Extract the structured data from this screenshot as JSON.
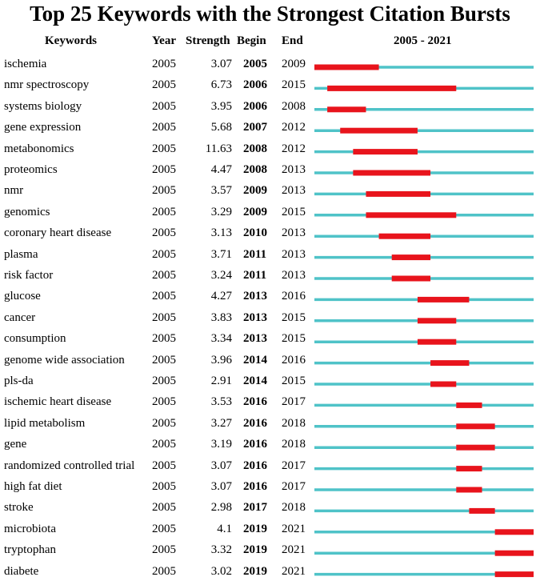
{
  "chart_data": {
    "type": "table",
    "title": "Top 25 Keywords with the Strongest Citation Bursts",
    "columns": [
      "Keywords",
      "Year",
      "Strength",
      "Begin",
      "End",
      "2005 - 2021"
    ],
    "range_start": 2005,
    "range_end": 2021,
    "colors": {
      "baseline": "#4fc3c8",
      "burst": "#e8141c"
    },
    "rows": [
      {
        "keyword": "ischemia",
        "year": "2005",
        "strength": "3.07",
        "begin": "2005",
        "end": "2009"
      },
      {
        "keyword": "nmr spectroscopy",
        "year": "2005",
        "strength": "6.73",
        "begin": "2006",
        "end": "2015"
      },
      {
        "keyword": "systems biology",
        "year": "2005",
        "strength": "3.95",
        "begin": "2006",
        "end": "2008"
      },
      {
        "keyword": "gene expression",
        "year": "2005",
        "strength": "5.68",
        "begin": "2007",
        "end": "2012"
      },
      {
        "keyword": "metabonomics",
        "year": "2005",
        "strength": "11.63",
        "begin": "2008",
        "end": "2012"
      },
      {
        "keyword": "proteomics",
        "year": "2005",
        "strength": "4.47",
        "begin": "2008",
        "end": "2013"
      },
      {
        "keyword": "nmr",
        "year": "2005",
        "strength": "3.57",
        "begin": "2009",
        "end": "2013"
      },
      {
        "keyword": "genomics",
        "year": "2005",
        "strength": "3.29",
        "begin": "2009",
        "end": "2015"
      },
      {
        "keyword": "coronary heart disease",
        "year": "2005",
        "strength": "3.13",
        "begin": "2010",
        "end": "2013"
      },
      {
        "keyword": "plasma",
        "year": "2005",
        "strength": "3.71",
        "begin": "2011",
        "end": "2013"
      },
      {
        "keyword": "risk factor",
        "year": "2005",
        "strength": "3.24",
        "begin": "2011",
        "end": "2013"
      },
      {
        "keyword": "glucose",
        "year": "2005",
        "strength": "4.27",
        "begin": "2013",
        "end": "2016"
      },
      {
        "keyword": "cancer",
        "year": "2005",
        "strength": "3.83",
        "begin": "2013",
        "end": "2015"
      },
      {
        "keyword": "consumption",
        "year": "2005",
        "strength": "3.34",
        "begin": "2013",
        "end": "2015"
      },
      {
        "keyword": "genome wide association",
        "year": "2005",
        "strength": "3.96",
        "begin": "2014",
        "end": "2016"
      },
      {
        "keyword": "pls-da",
        "year": "2005",
        "strength": "2.91",
        "begin": "2014",
        "end": "2015"
      },
      {
        "keyword": "ischemic heart disease",
        "year": "2005",
        "strength": "3.53",
        "begin": "2016",
        "end": "2017"
      },
      {
        "keyword": "lipid metabolism",
        "year": "2005",
        "strength": "3.27",
        "begin": "2016",
        "end": "2018"
      },
      {
        "keyword": "gene",
        "year": "2005",
        "strength": "3.19",
        "begin": "2016",
        "end": "2018"
      },
      {
        "keyword": "randomized controlled trial",
        "year": "2005",
        "strength": "3.07",
        "begin": "2016",
        "end": "2017"
      },
      {
        "keyword": "high fat diet",
        "year": "2005",
        "strength": "3.07",
        "begin": "2016",
        "end": "2017"
      },
      {
        "keyword": "stroke",
        "year": "2005",
        "strength": "2.98",
        "begin": "2017",
        "end": "2018"
      },
      {
        "keyword": "microbiota",
        "year": "2005",
        "strength": "4.1",
        "begin": "2019",
        "end": "2021"
      },
      {
        "keyword": "tryptophan",
        "year": "2005",
        "strength": "3.32",
        "begin": "2019",
        "end": "2021"
      },
      {
        "keyword": "diabete",
        "year": "2005",
        "strength": "3.02",
        "begin": "2019",
        "end": "2021"
      }
    ]
  }
}
